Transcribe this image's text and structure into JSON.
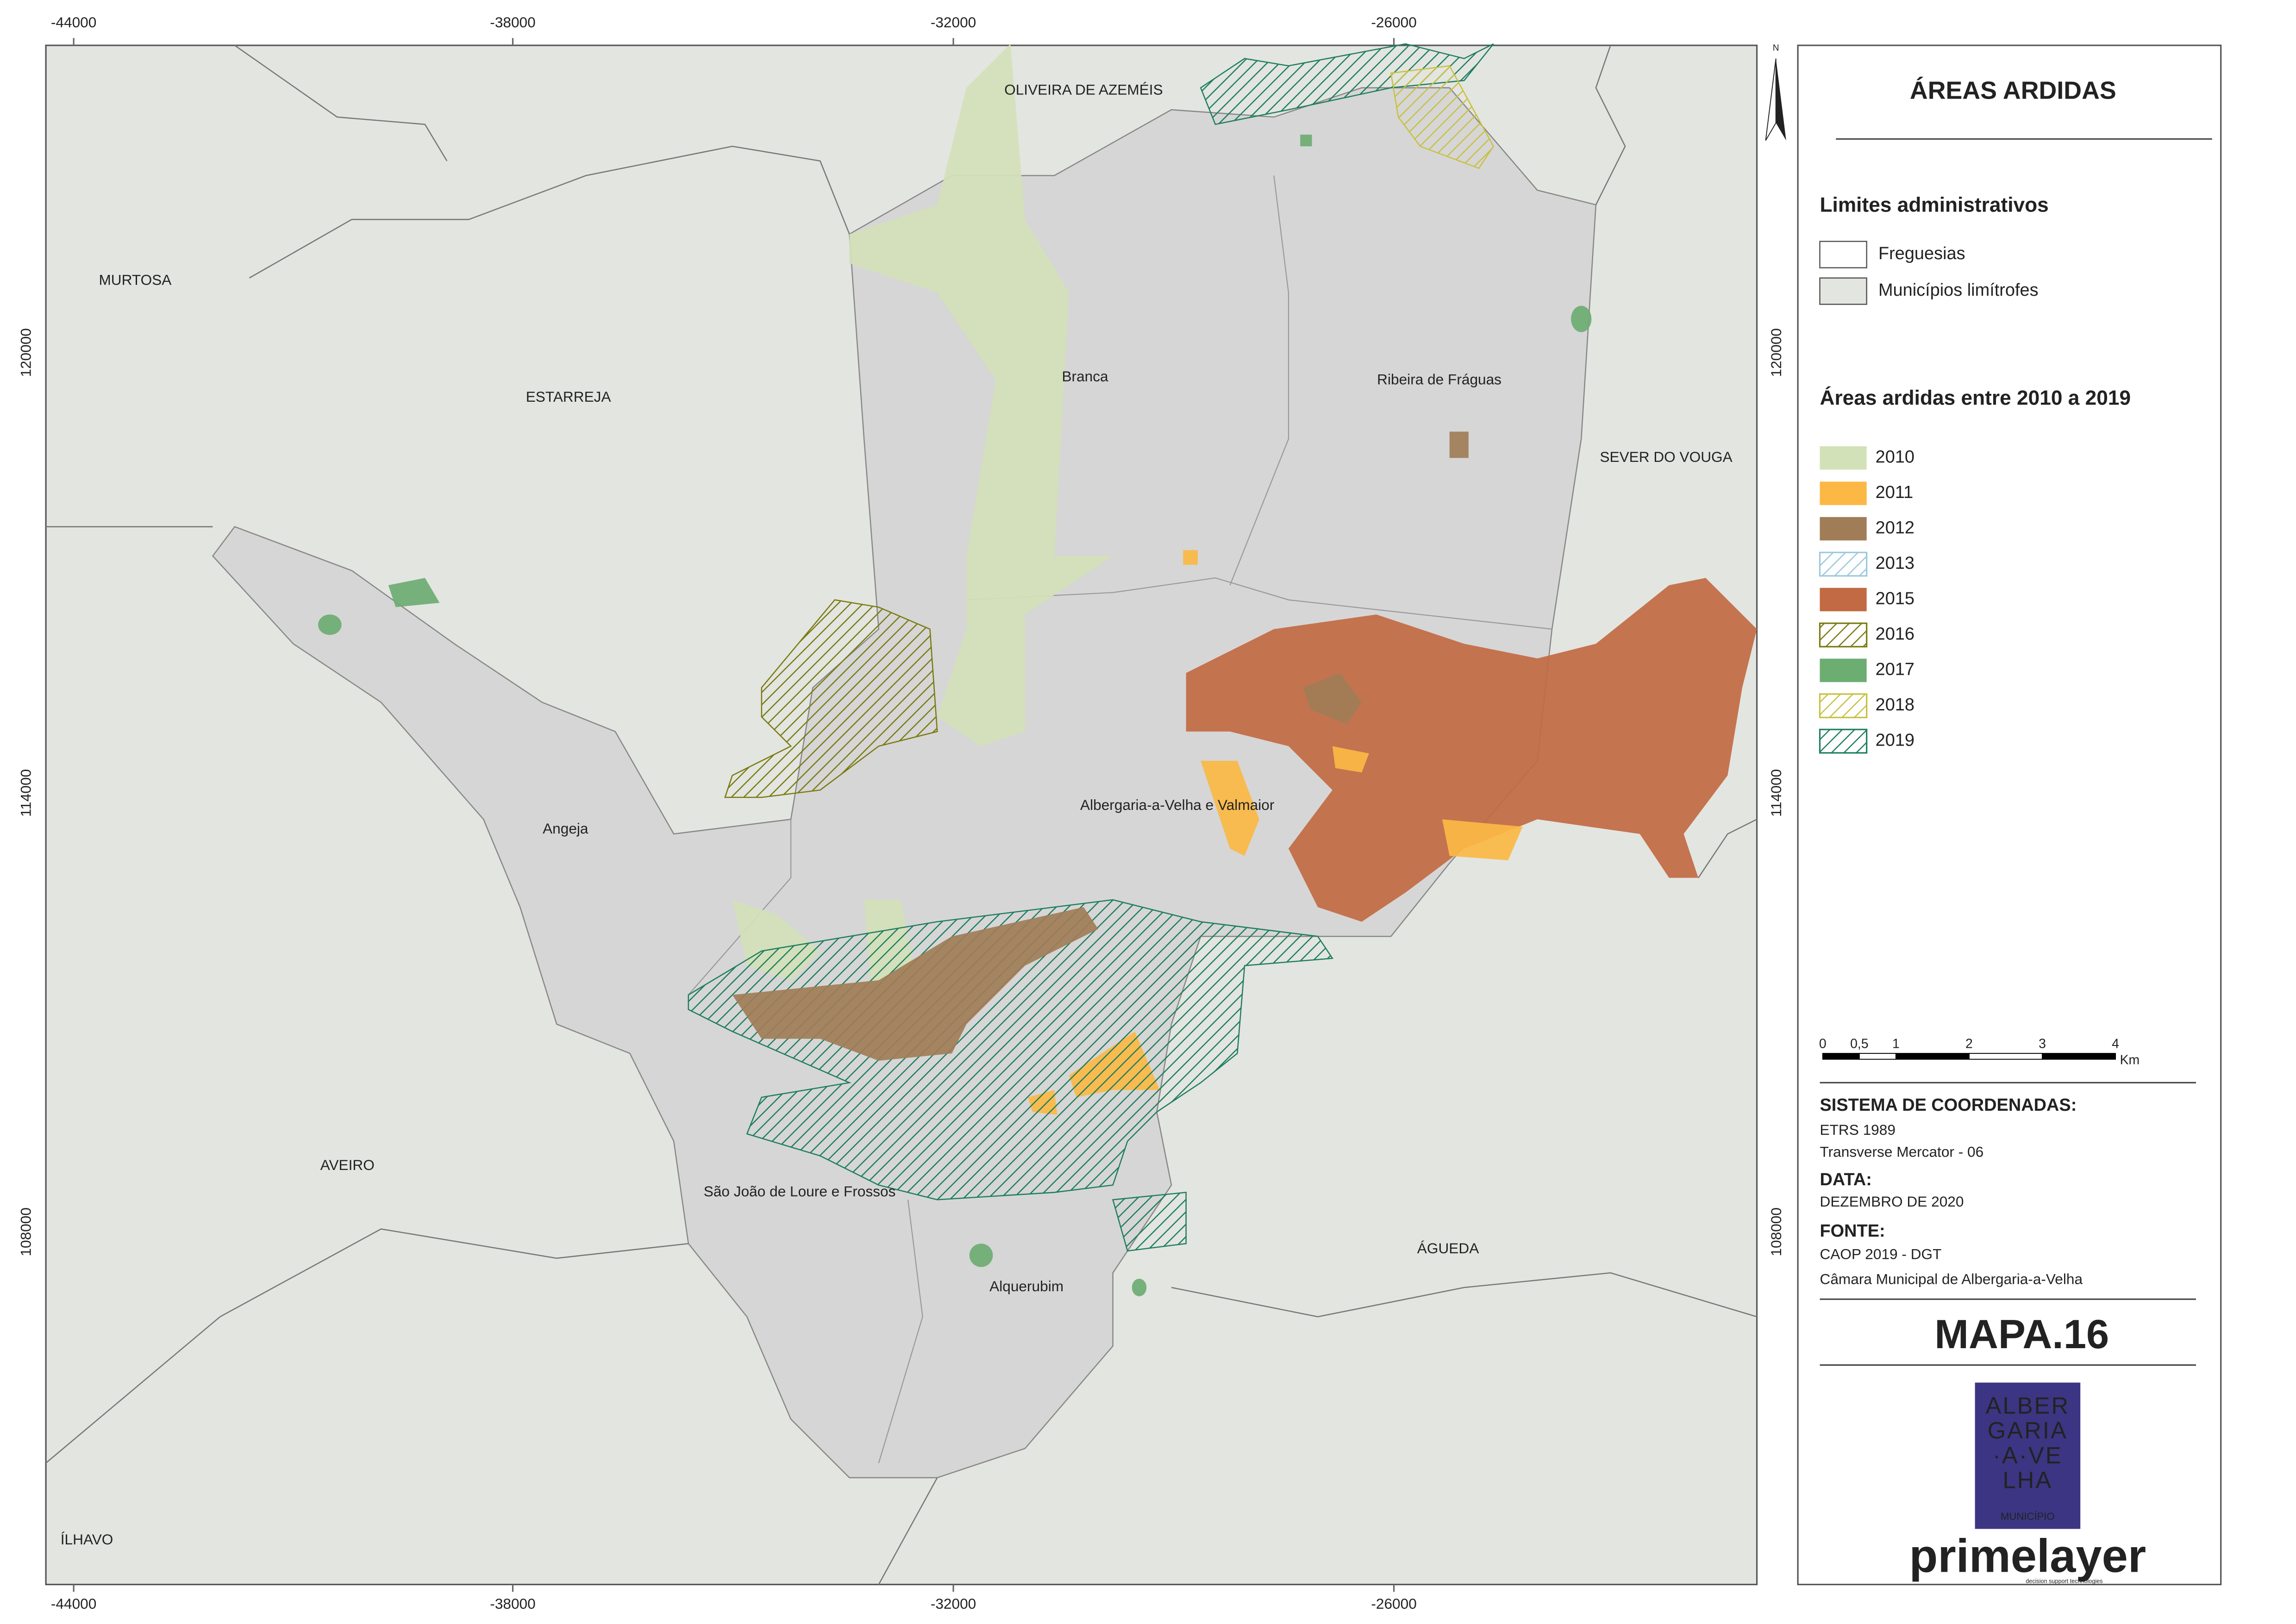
{
  "map": {
    "x_ticks": [
      "-44000",
      "-38000",
      "-32000",
      "-26000"
    ],
    "y_ticks": [
      "120000",
      "114000",
      "108000"
    ],
    "north": "N",
    "places": [
      "OLIVEIRA DE AZEMÉIS",
      "MURTOSA",
      "ESTARREJA",
      "Branca",
      "Ribeira de Fráguas",
      "SEVER DO VOUGA",
      "Angeja",
      "Albergaria-a-Velha e Valmaior",
      "AVEIRO",
      "São João de Loure e Frossos",
      "ÁGUEDA",
      "Alquerubim",
      "ÍLHAVO"
    ]
  },
  "legend": {
    "title": "ÁREAS ARDIDAS",
    "admin_title": "Limites administrativos",
    "admin_items": [
      {
        "label": "Freguesias",
        "color": "#ffffff"
      },
      {
        "label": "Municípios limítrofes",
        "color": "#e3e5e0"
      }
    ],
    "burn_title": "Áreas ardidas entre 2010 a 2019",
    "burn_items": [
      {
        "label": "2010",
        "color": "#d3e1b8",
        "style": "solid"
      },
      {
        "label": "2011",
        "color": "#fbb844",
        "style": "solid"
      },
      {
        "label": "2012",
        "color": "#a07d57",
        "style": "solid"
      },
      {
        "label": "2013",
        "color": "#9cc8dc",
        "style": "hatch"
      },
      {
        "label": "2015",
        "color": "#c26a43",
        "style": "solid"
      },
      {
        "label": "2016",
        "color": "#7a7a10",
        "style": "hatch"
      },
      {
        "label": "2017",
        "color": "#6cad72",
        "style": "solid"
      },
      {
        "label": "2018",
        "color": "#c8c040",
        "style": "hatch"
      },
      {
        "label": "2019",
        "color": "#1e7e5e",
        "style": "hatch"
      }
    ]
  },
  "scale_bar": {
    "labels": [
      "0",
      "0,5",
      "1",
      "2",
      "3",
      "4"
    ],
    "unit": "Km"
  },
  "info": {
    "crs_title": "SISTEMA DE COORDENADAS:",
    "crs_lines": [
      "ETRS 1989",
      "Transverse Mercator - 06"
    ],
    "date_title": "DATA:",
    "date": "DEZEMBRO DE 2020",
    "source_title": "FONTE:",
    "source_lines": [
      "CAOP 2019 - DGT",
      "Câmara Municipal de Albergaria-a-Velha"
    ]
  },
  "map_number": "MAPA.16",
  "logo": {
    "lines": [
      "ALBER",
      "GARIA",
      "·A·VE",
      "LHA"
    ],
    "subtitle": "MUNICÍPIO"
  },
  "brand": {
    "name": "primelayer",
    "tagline": "decision support technologies"
  }
}
